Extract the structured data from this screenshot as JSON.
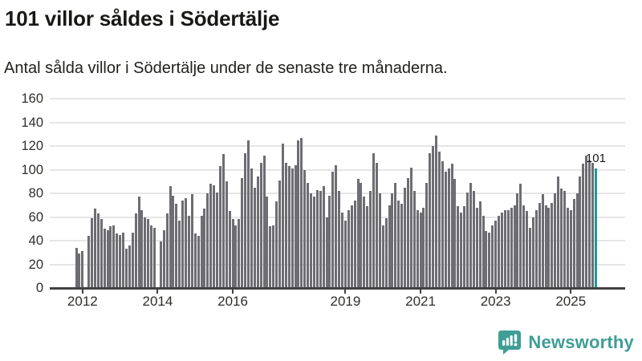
{
  "chart_data": {
    "type": "bar",
    "title": "101 villor såldes i Södertälje",
    "subtitle": "Antal sålda villor i Södertälje under de senaste tre månaderna.",
    "xlabel": "",
    "ylabel": "",
    "ylim": [
      0,
      160
    ],
    "yticks": [
      0,
      20,
      40,
      60,
      80,
      100,
      120,
      140,
      160
    ],
    "grid": true,
    "legend": "none",
    "x_ticks": [
      {
        "label": "2012",
        "index": 2
      },
      {
        "label": "2014",
        "index": 26
      },
      {
        "label": "2016",
        "index": 50
      },
      {
        "label": "2019",
        "index": 86
      },
      {
        "label": "2021",
        "index": 110
      },
      {
        "label": "2023",
        "index": 134
      },
      {
        "label": "2025",
        "index": 158
      }
    ],
    "values": [
      34,
      29,
      31,
      null,
      44,
      59,
      67,
      63,
      58,
      50,
      49,
      52,
      53,
      46,
      45,
      47,
      33,
      36,
      47,
      63,
      77,
      66,
      60,
      58,
      53,
      51,
      null,
      39,
      49,
      63,
      86,
      78,
      71,
      57,
      74,
      76,
      61,
      79,
      46,
      44,
      61,
      67,
      80,
      88,
      87,
      81,
      103,
      113,
      90,
      65,
      58,
      53,
      58,
      93,
      114,
      125,
      101,
      85,
      94,
      106,
      112,
      77,
      52,
      53,
      73,
      91,
      122,
      106,
      103,
      101,
      104,
      125,
      127,
      100,
      89,
      80,
      77,
      83,
      82,
      86,
      60,
      78,
      98,
      104,
      82,
      64,
      57,
      66,
      70,
      74,
      92,
      89,
      77,
      69,
      82,
      114,
      106,
      80,
      53,
      59,
      70,
      80,
      89,
      74,
      71,
      85,
      93,
      102,
      82,
      66,
      64,
      68,
      89,
      114,
      120,
      129,
      115,
      107,
      98,
      101,
      105,
      92,
      69,
      64,
      69,
      81,
      89,
      82,
      68,
      73,
      61,
      48,
      47,
      53,
      57,
      61,
      64,
      66,
      66,
      68,
      70,
      80,
      88,
      70,
      65,
      51,
      60,
      66,
      72,
      79,
      70,
      68,
      72,
      80,
      94,
      84,
      82,
      68,
      66,
      75,
      80,
      94,
      105,
      112,
      108,
      106,
      101
    ],
    "bar_color": "#6d6d72",
    "highlight": {
      "index": 166,
      "value": 101,
      "label": "101",
      "color": "#189c9d"
    }
  },
  "branding": {
    "logo_text": "Newsworthy",
    "color": "#3f9e96"
  }
}
